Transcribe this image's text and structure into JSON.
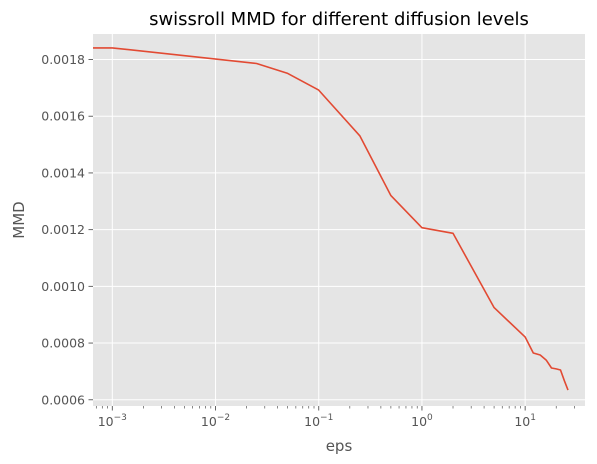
{
  "chart_data": {
    "type": "line",
    "title": "swissroll MMD for different diffusion levels",
    "xlabel": "eps",
    "ylabel": "MMD",
    "x_scale": "log",
    "xlim": [
      0.00065,
      38
    ],
    "ylim": [
      0.000578,
      0.00189
    ],
    "x_ticks": [
      {
        "value": 0.001,
        "base": "10",
        "exp": "−3"
      },
      {
        "value": 0.01,
        "base": "10",
        "exp": "−2"
      },
      {
        "value": 0.1,
        "base": "10",
        "exp": "−1"
      },
      {
        "value": 1,
        "base": "10",
        "exp": "0"
      },
      {
        "value": 10,
        "base": "10",
        "exp": "1"
      }
    ],
    "y_ticks": [
      {
        "value": 0.0006,
        "label": "0.0006"
      },
      {
        "value": 0.0008,
        "label": "0.0008"
      },
      {
        "value": 0.001,
        "label": "0.0010"
      },
      {
        "value": 0.0012,
        "label": "0.0012"
      },
      {
        "value": 0.0014,
        "label": "0.0014"
      },
      {
        "value": 0.0016,
        "label": "0.0016"
      },
      {
        "value": 0.0018,
        "label": "0.0018"
      }
    ],
    "grid": true,
    "background": "#e5e5e5",
    "series": [
      {
        "color": "#e24a33",
        "x": [
          0.0005,
          0.001,
          0.025,
          0.05,
          0.1,
          0.25,
          0.5,
          1,
          2,
          5,
          10,
          12,
          14,
          16,
          18,
          20,
          22,
          24,
          26
        ],
        "y": [
          0.001841,
          0.001841,
          0.001786,
          0.001751,
          0.001692,
          0.001531,
          0.00132,
          0.001207,
          0.001187,
          0.000925,
          0.000821,
          0.000765,
          0.000758,
          0.00074,
          0.000712,
          0.000709,
          0.000705,
          0.000667,
          0.000634
        ]
      }
    ]
  }
}
